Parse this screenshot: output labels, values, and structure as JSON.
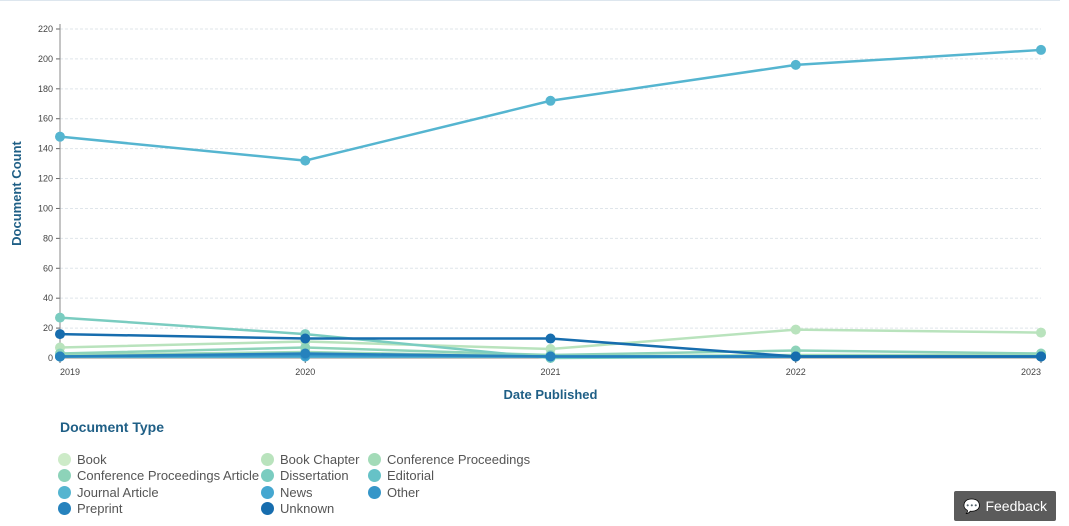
{
  "chart_data": {
    "type": "line",
    "xlabel": "Date Published",
    "ylabel": "Document Count",
    "x": [
      "2019",
      "2020",
      "2021",
      "2022",
      "2023"
    ],
    "yticks": [
      0,
      20,
      40,
      60,
      80,
      100,
      120,
      140,
      160,
      180,
      200,
      220
    ],
    "ylim": [
      0,
      220
    ],
    "grid": true,
    "legend_title": "Document Type",
    "legend_placement": "bottom-left",
    "series": [
      {
        "name": "Book",
        "color": "#cdebc8",
        "values": [
          1,
          1,
          1,
          1,
          1
        ]
      },
      {
        "name": "Book Chapter",
        "color": "#b9e3bd",
        "values": [
          7,
          11,
          6,
          19,
          17
        ]
      },
      {
        "name": "Conference Proceedings",
        "color": "#a3dbb8",
        "values": [
          2,
          4,
          1,
          2,
          2
        ]
      },
      {
        "name": "Conference Proceedings Article",
        "color": "#8dd3b9",
        "values": [
          3,
          7,
          2,
          5,
          3
        ]
      },
      {
        "name": "Dissertation",
        "color": "#7accc0",
        "values": [
          27,
          16,
          0,
          1,
          1
        ]
      },
      {
        "name": "Editorial",
        "color": "#66c2c7",
        "values": [
          1,
          1,
          1,
          1,
          1
        ]
      },
      {
        "name": "Journal Article",
        "color": "#55b5d0",
        "values": [
          148,
          132,
          172,
          196,
          206
        ]
      },
      {
        "name": "News",
        "color": "#45a7d0",
        "values": [
          1,
          1,
          1,
          1,
          1
        ]
      },
      {
        "name": "Other",
        "color": "#3696c8",
        "values": [
          1,
          2,
          1,
          1,
          1
        ]
      },
      {
        "name": "Preprint",
        "color": "#2682bd",
        "values": [
          1,
          3,
          1,
          1,
          1
        ]
      },
      {
        "name": "Unknown",
        "color": "#176dae",
        "values": [
          16,
          13,
          13,
          1,
          1
        ]
      }
    ]
  },
  "feedback_label": "Feedback"
}
